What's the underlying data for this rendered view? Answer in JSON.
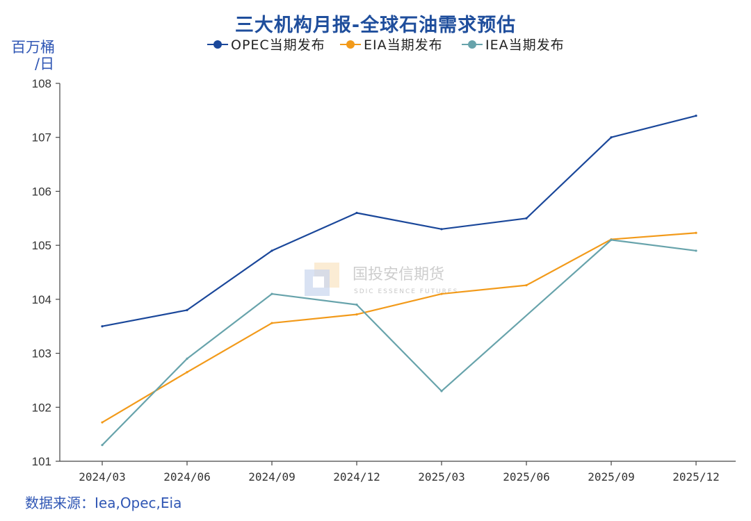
{
  "title": "三大机构月报-全球石油需求预估",
  "unit_label_line1": "百万桶",
  "unit_label_line2": "/日",
  "source": "数据来源：Iea,Opec,Eia",
  "watermark": {
    "cn": "国投安信期货",
    "en": "SDIC ESSENCE FUTURES"
  },
  "chart_data": {
    "type": "line",
    "title": "三大机构月报-全球石油需求预估",
    "ylabel": "百万桶/日",
    "xlabel": "",
    "categories": [
      "2024/03",
      "2024/06",
      "2024/09",
      "2024/12",
      "2025/03",
      "2025/06",
      "2025/09",
      "2025/12"
    ],
    "ylim": [
      101,
      108
    ],
    "yticks": [
      101,
      102,
      103,
      104,
      105,
      106,
      107,
      108
    ],
    "legend_position": "top-center",
    "grid": false,
    "series": [
      {
        "name": "OPEC当期发布",
        "color": "#1a479a",
        "values": [
          103.5,
          103.8,
          104.9,
          105.6,
          105.3,
          105.5,
          107.0,
          107.4
        ]
      },
      {
        "name": "EIA当期发布",
        "color": "#f29a1a",
        "values": [
          101.72,
          102.65,
          103.56,
          103.72,
          104.1,
          104.26,
          105.11,
          105.23
        ]
      },
      {
        "name": "IEA当期发布",
        "color": "#67a3ab",
        "values": [
          101.3,
          102.9,
          104.1,
          103.9,
          102.3,
          null,
          105.1,
          104.9
        ]
      }
    ]
  }
}
